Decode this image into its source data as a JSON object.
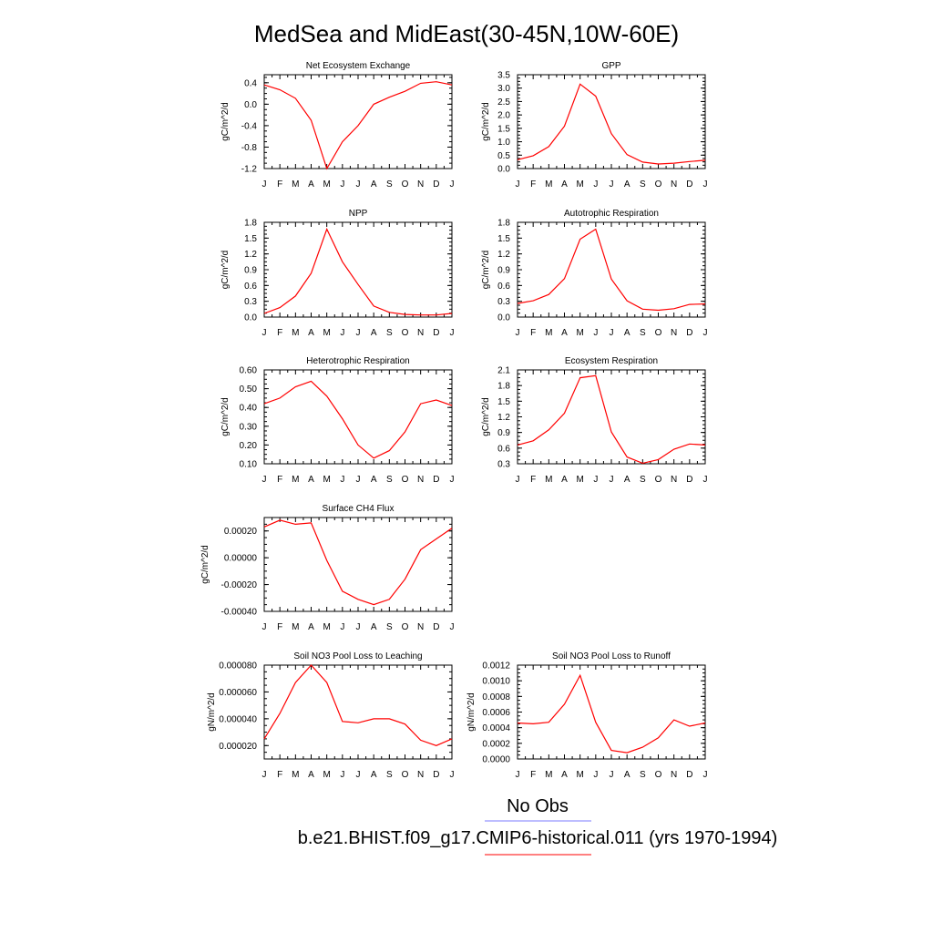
{
  "page": {
    "title": "MedSea and MidEast(30-45N,10W-60E)",
    "legend": [
      {
        "label": "No Obs",
        "color": "#7b7bff"
      },
      {
        "label": "b.e21.BHIST.f09_g17.CMIP6-historical.011 (yrs 1970-1994)",
        "color": "#ff0000"
      }
    ]
  },
  "chart_data": [
    {
      "type": "line",
      "title": "Net Ecosystem Exchange",
      "ylabel": "gC/m^2/d",
      "x": [
        "J",
        "F",
        "M",
        "A",
        "M",
        "J",
        "J",
        "A",
        "S",
        "O",
        "N",
        "D",
        "J"
      ],
      "ylim": [
        -1.2,
        0.55
      ],
      "yticks": [
        -1.2,
        -0.8,
        -0.4,
        0.0,
        0.4
      ],
      "ytick_labels": [
        "-1.2",
        "-0.8",
        "-0.4",
        "0.0",
        "0.4"
      ],
      "series": [
        {
          "color": "#ff0000",
          "values": [
            0.36,
            0.27,
            0.11,
            -0.3,
            -1.2,
            -0.7,
            -0.4,
            0.0,
            0.13,
            0.24,
            0.39,
            0.42,
            0.36
          ]
        }
      ]
    },
    {
      "type": "line",
      "title": "GPP",
      "ylabel": "gC/m^2/d",
      "x": [
        "J",
        "F",
        "M",
        "A",
        "M",
        "J",
        "J",
        "A",
        "S",
        "O",
        "N",
        "D",
        "J"
      ],
      "ylim": [
        0.0,
        3.5
      ],
      "yticks": [
        0.0,
        0.5,
        1.0,
        1.5,
        2.0,
        2.5,
        3.0,
        3.5
      ],
      "ytick_labels": [
        "0.0",
        "0.5",
        "1.0",
        "1.5",
        "2.0",
        "2.5",
        "3.0",
        "3.5"
      ],
      "series": [
        {
          "color": "#ff0000",
          "values": [
            0.33,
            0.48,
            0.82,
            1.58,
            3.15,
            2.7,
            1.3,
            0.52,
            0.24,
            0.17,
            0.2,
            0.26,
            0.31
          ]
        }
      ]
    },
    {
      "type": "line",
      "title": "NPP",
      "ylabel": "gC/m^2/d",
      "x": [
        "J",
        "F",
        "M",
        "A",
        "M",
        "J",
        "J",
        "A",
        "S",
        "O",
        "N",
        "D",
        "J"
      ],
      "ylim": [
        0.0,
        1.8
      ],
      "yticks": [
        0.0,
        0.3,
        0.6,
        0.9,
        1.2,
        1.5,
        1.8
      ],
      "ytick_labels": [
        "0.0",
        "0.3",
        "0.6",
        "0.9",
        "1.2",
        "1.5",
        "1.8"
      ],
      "series": [
        {
          "color": "#ff0000",
          "values": [
            0.07,
            0.18,
            0.4,
            0.83,
            1.67,
            1.05,
            0.62,
            0.21,
            0.09,
            0.05,
            0.04,
            0.04,
            0.07
          ]
        }
      ]
    },
    {
      "type": "line",
      "title": "Autotrophic Respiration",
      "ylabel": "gC/m^2/d",
      "x": [
        "J",
        "F",
        "M",
        "A",
        "M",
        "J",
        "J",
        "A",
        "S",
        "O",
        "N",
        "D",
        "J"
      ],
      "ylim": [
        0.0,
        1.8
      ],
      "yticks": [
        0.0,
        0.3,
        0.6,
        0.9,
        1.2,
        1.5,
        1.8
      ],
      "ytick_labels": [
        "0.0",
        "0.3",
        "0.6",
        "0.9",
        "1.2",
        "1.5",
        "1.8"
      ],
      "series": [
        {
          "color": "#ff0000",
          "values": [
            0.26,
            0.31,
            0.43,
            0.73,
            1.48,
            1.67,
            0.72,
            0.31,
            0.15,
            0.13,
            0.16,
            0.24,
            0.25
          ]
        }
      ]
    },
    {
      "type": "line",
      "title": "Heterotrophic Respiration",
      "ylabel": "gC/m^2/d",
      "x": [
        "J",
        "F",
        "M",
        "A",
        "M",
        "J",
        "J",
        "A",
        "S",
        "O",
        "N",
        "D",
        "J"
      ],
      "ylim": [
        0.1,
        0.6
      ],
      "yticks": [
        0.1,
        0.2,
        0.3,
        0.4,
        0.5,
        0.6
      ],
      "ytick_labels": [
        "0.10",
        "0.20",
        "0.30",
        "0.40",
        "0.50",
        "0.60"
      ],
      "series": [
        {
          "color": "#ff0000",
          "values": [
            0.42,
            0.45,
            0.51,
            0.54,
            0.46,
            0.34,
            0.2,
            0.13,
            0.17,
            0.27,
            0.42,
            0.44,
            0.41
          ]
        }
      ]
    },
    {
      "type": "line",
      "title": "Ecosystem Respiration",
      "ylabel": "gC/m^2/d",
      "x": [
        "J",
        "F",
        "M",
        "A",
        "M",
        "J",
        "J",
        "A",
        "S",
        "O",
        "N",
        "D",
        "J"
      ],
      "ylim": [
        0.3,
        2.1
      ],
      "yticks": [
        0.3,
        0.6,
        0.9,
        1.2,
        1.5,
        1.8,
        2.1
      ],
      "ytick_labels": [
        "0.3",
        "0.6",
        "0.9",
        "1.2",
        "1.5",
        "1.8",
        "2.1"
      ],
      "series": [
        {
          "color": "#ff0000",
          "values": [
            0.66,
            0.74,
            0.95,
            1.27,
            1.95,
            1.99,
            0.91,
            0.43,
            0.31,
            0.38,
            0.58,
            0.68,
            0.66
          ]
        }
      ]
    },
    {
      "type": "line",
      "title": "Surface CH4 Flux",
      "ylabel": "gC/m^2/d",
      "x": [
        "J",
        "F",
        "M",
        "A",
        "M",
        "J",
        "J",
        "A",
        "S",
        "O",
        "N",
        "D",
        "J"
      ],
      "ylim": [
        -0.0004,
        0.0003
      ],
      "yticks": [
        -0.0004,
        -0.0002,
        0.0,
        0.0002
      ],
      "ytick_labels": [
        "-0.00040",
        "-0.00020",
        "0.00000",
        "0.00020"
      ],
      "series": [
        {
          "color": "#ff0000",
          "values": [
            0.00023,
            0.00028,
            0.00025,
            0.00026,
            -2e-05,
            -0.00025,
            -0.00031,
            -0.00035,
            -0.00031,
            -0.00016,
            6e-05,
            0.00014,
            0.00022
          ]
        }
      ]
    },
    {
      "type": "line",
      "title": "Soil NO3 Pool Loss to Leaching",
      "ylabel": "gN/m^2/d",
      "x": [
        "J",
        "F",
        "M",
        "A",
        "M",
        "J",
        "J",
        "A",
        "S",
        "O",
        "N",
        "D",
        "J"
      ],
      "ylim": [
        1e-05,
        8e-05
      ],
      "yticks": [
        2e-05,
        4e-05,
        6e-05,
        8e-05
      ],
      "ytick_labels": [
        "0.000020",
        "0.000040",
        "0.000060",
        "0.000080"
      ],
      "series": [
        {
          "color": "#ff0000",
          "values": [
            2.5e-05,
            4.4e-05,
            6.7e-05,
            8e-05,
            6.7e-05,
            3.8e-05,
            3.7e-05,
            4e-05,
            4e-05,
            3.6e-05,
            2.4e-05,
            2e-05,
            2.5e-05
          ]
        }
      ]
    },
    {
      "type": "line",
      "title": "Soil NO3 Pool Loss to Runoff",
      "ylabel": "gN/m^2/d",
      "x": [
        "J",
        "F",
        "M",
        "A",
        "M",
        "J",
        "J",
        "A",
        "S",
        "O",
        "N",
        "D",
        "J"
      ],
      "ylim": [
        0.0,
        0.0012
      ],
      "yticks": [
        0.0,
        0.0002,
        0.0004,
        0.0006,
        0.0008,
        0.001,
        0.0012
      ],
      "ytick_labels": [
        "0.0000",
        "0.0002",
        "0.0004",
        "0.0006",
        "0.0008",
        "0.0010",
        "0.0012"
      ],
      "series": [
        {
          "color": "#ff0000",
          "values": [
            0.00046,
            0.00045,
            0.00047,
            0.0007,
            0.00107,
            0.00047,
            0.00011,
            8e-05,
            0.00015,
            0.00027,
            0.0005,
            0.00042,
            0.00046
          ]
        }
      ]
    }
  ]
}
